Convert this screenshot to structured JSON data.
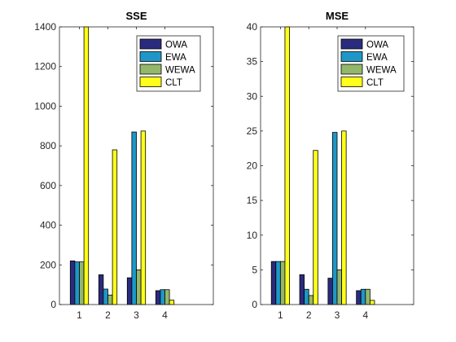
{
  "figure": {
    "background": "#ffffff",
    "axes_color": "#262626"
  },
  "colors": {
    "OWA": "#2b2b7e",
    "EWA": "#1e97c8",
    "WEWA": "#94b86b",
    "CLT": "#ffff1a"
  },
  "chart_data": [
    {
      "type": "bar",
      "title": "SSE",
      "xlabel": "",
      "ylabel": "",
      "categories": [
        "1",
        "2",
        "3",
        "4"
      ],
      "xlim": [
        0.3,
        5.7
      ],
      "ylim": [
        0,
        1400
      ],
      "yticks": [
        0,
        200,
        400,
        600,
        800,
        1000,
        1200,
        1400
      ],
      "grid": false,
      "legend_position": "top-right",
      "series": [
        {
          "name": "OWA",
          "values": [
            220,
            150,
            135,
            70
          ]
        },
        {
          "name": "EWA",
          "values": [
            215,
            78,
            870,
            75
          ]
        },
        {
          "name": "WEWA",
          "values": [
            215,
            48,
            175,
            75
          ]
        },
        {
          "name": "CLT",
          "values": [
            1400,
            780,
            875,
            22
          ]
        }
      ]
    },
    {
      "type": "bar",
      "title": "MSE",
      "xlabel": "",
      "ylabel": "",
      "categories": [
        "1",
        "2",
        "3",
        "4"
      ],
      "xlim": [
        0.3,
        5.7
      ],
      "ylim": [
        0,
        40
      ],
      "yticks": [
        0,
        5,
        10,
        15,
        20,
        25,
        30,
        35,
        40
      ],
      "grid": false,
      "legend_position": "top-right",
      "series": [
        {
          "name": "OWA",
          "values": [
            6.2,
            4.3,
            3.8,
            2.0
          ]
        },
        {
          "name": "EWA",
          "values": [
            6.2,
            2.2,
            24.8,
            2.2
          ]
        },
        {
          "name": "WEWA",
          "values": [
            6.2,
            1.3,
            5.0,
            2.2
          ]
        },
        {
          "name": "CLT",
          "values": [
            40,
            22.2,
            25.0,
            0.6
          ]
        }
      ]
    }
  ]
}
